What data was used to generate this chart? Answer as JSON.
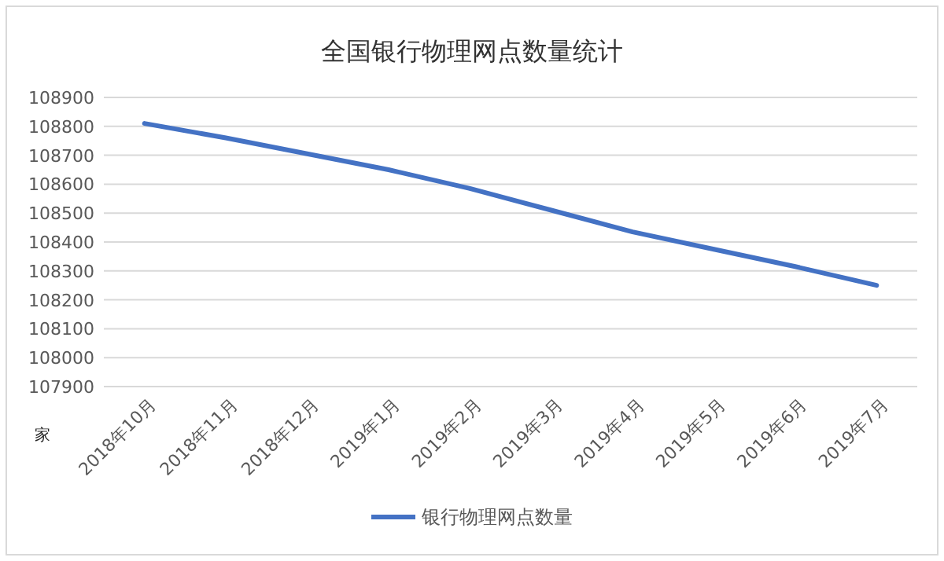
{
  "chart_data": {
    "type": "line",
    "title": "全国银行物理网点数量统计",
    "ylabel": "家",
    "categories": [
      "2018年10月",
      "2018年11月",
      "2018年12月",
      "2019年1月",
      "2019年2月",
      "2019年3月",
      "2019年4月",
      "2019年5月",
      "2019年6月",
      "2019年7月"
    ],
    "series": [
      {
        "name": "银行物理网点数量",
        "color": "#4472c4",
        "values": [
          108810,
          108760,
          108705,
          108650,
          108585,
          108510,
          108435,
          108375,
          108315,
          108250
        ]
      }
    ],
    "ylim": [
      107900,
      108900
    ],
    "yticks": [
      107900,
      108000,
      108100,
      108200,
      108300,
      108400,
      108500,
      108600,
      108700,
      108800,
      108900
    ],
    "grid": "y",
    "legend": "bottom",
    "marker": "none",
    "line_style": "solid"
  }
}
